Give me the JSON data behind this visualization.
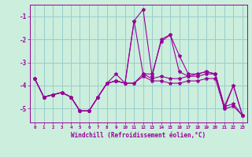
{
  "xlabel": "Windchill (Refroidissement éolien,°C)",
  "ylabel": "",
  "bg_color": "#cceedd",
  "line_color": "#990099",
  "grid_color": "#99cccc",
  "hours": [
    0,
    1,
    2,
    3,
    4,
    5,
    6,
    7,
    8,
    9,
    10,
    11,
    12,
    13,
    14,
    15,
    16,
    17,
    18,
    19,
    20,
    21,
    22,
    23
  ],
  "line1": [
    -3.7,
    -4.5,
    -4.4,
    -4.3,
    -4.5,
    -5.1,
    -5.1,
    -4.5,
    -3.9,
    -3.5,
    -3.9,
    -1.2,
    -0.7,
    -3.6,
    -2.0,
    -1.8,
    -2.7,
    -3.5,
    -3.5,
    -3.4,
    -3.5,
    -5.0,
    -4.0,
    -5.3
  ],
  "line2": [
    -3.7,
    -4.5,
    -4.4,
    -4.3,
    -4.5,
    -5.1,
    -5.1,
    -4.5,
    -3.9,
    -3.8,
    -3.9,
    -3.9,
    -3.5,
    -3.7,
    -3.6,
    -3.7,
    -3.7,
    -3.6,
    -3.6,
    -3.5,
    -3.5,
    -4.9,
    -4.8,
    -5.3
  ],
  "line3": [
    -3.7,
    -4.5,
    -4.4,
    -4.3,
    -4.5,
    -5.1,
    -5.1,
    -4.5,
    -3.9,
    -3.8,
    -3.9,
    -3.9,
    -3.6,
    -3.8,
    -3.8,
    -3.9,
    -3.9,
    -3.8,
    -3.8,
    -3.7,
    -3.7,
    -5.0,
    -4.9,
    -5.3
  ],
  "line4": [
    -3.7,
    -4.5,
    -4.4,
    -4.3,
    -4.5,
    -5.1,
    -5.1,
    -4.5,
    -3.9,
    -3.8,
    -3.9,
    -1.2,
    -3.5,
    -3.5,
    -2.1,
    -1.8,
    -3.4,
    -3.6,
    -3.5,
    -3.4,
    -3.5,
    -4.9,
    -4.0,
    -5.3
  ],
  "ylim": [
    -5.6,
    -0.5
  ],
  "yticks": [
    -5,
    -4,
    -3,
    -2,
    -1
  ],
  "xtick_labels": [
    "0",
    "1",
    "2",
    "3",
    "4",
    "5",
    "6",
    "7",
    "8",
    "9",
    "10",
    "11",
    "12",
    "13",
    "14",
    "15",
    "16",
    "17",
    "18",
    "19",
    "20",
    "21",
    "22",
    "23"
  ]
}
